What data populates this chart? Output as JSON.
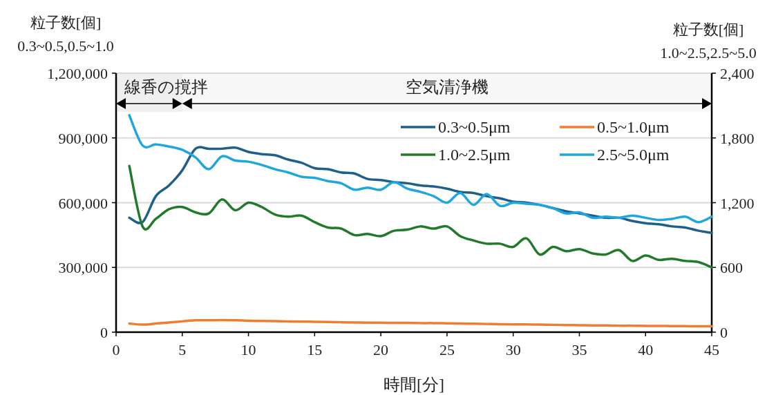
{
  "chart_data": {
    "type": "line",
    "xlabel": "時間[分]",
    "ylabel": "粒子数[個]\n0.3~0.5,0.5~1.0",
    "y2label": "粒子数[個]\n1.0~2.5,2.5~5.0",
    "x": [
      1,
      2,
      3,
      4,
      5,
      6,
      7,
      8,
      9,
      10,
      11,
      12,
      13,
      14,
      15,
      16,
      17,
      18,
      19,
      20,
      21,
      22,
      23,
      24,
      25,
      26,
      27,
      28,
      29,
      30,
      31,
      32,
      33,
      34,
      35,
      36,
      37,
      38,
      39,
      40,
      41,
      42,
      43,
      44,
      45
    ],
    "xlim": [
      0,
      45
    ],
    "xticks": [
      0,
      5,
      10,
      15,
      20,
      25,
      30,
      35,
      40,
      45
    ],
    "ylim": [
      0,
      1200000
    ],
    "yticks": [
      0,
      {
        "value": 300000,
        "label": "300,000"
      },
      {
        "value": 600000,
        "label": "600,000"
      },
      {
        "value": 900000,
        "label": "900,000"
      },
      {
        "value": 1200000,
        "label": "1,200,000"
      }
    ],
    "y2lim": [
      0,
      2400
    ],
    "y2ticks": [
      0,
      600,
      {
        "value": 1200,
        "label": "1,200"
      },
      {
        "value": 1800,
        "label": "1,800"
      },
      {
        "value": 2400,
        "label": "2,400"
      }
    ],
    "grid": "y",
    "legend": "top right",
    "marker": "none",
    "line_style": "solid",
    "bands": [
      {
        "axis": "x",
        "from": 0,
        "to": 5,
        "label": "線香の撹拌"
      },
      {
        "axis": "x",
        "from": 5,
        "to": 45,
        "label": "空気清浄機"
      }
    ],
    "series": [
      {
        "name": "0.3~0.5μm",
        "color": "#1f5f8b",
        "values": [
          530000,
          510000,
          630000,
          680000,
          750000,
          850000,
          850000,
          850000,
          855000,
          835000,
          825000,
          820000,
          800000,
          785000,
          760000,
          755000,
          740000,
          735000,
          710000,
          705000,
          695000,
          690000,
          680000,
          675000,
          665000,
          650000,
          645000,
          630000,
          620000,
          605000,
          600000,
          590000,
          575000,
          560000,
          550000,
          540000,
          530000,
          530000,
          515000,
          505000,
          500000,
          490000,
          485000,
          470000,
          460000
        ]
      },
      {
        "name": "0.5~1.0μm",
        "color": "#ed7d31",
        "values": [
          40000,
          35000,
          40000,
          45000,
          50000,
          55000,
          55000,
          56000,
          55000,
          53000,
          52000,
          51000,
          50000,
          49000,
          48000,
          47000,
          46000,
          45000,
          44000,
          44000,
          43000,
          43000,
          42000,
          42000,
          41000,
          40000,
          39000,
          38000,
          37000,
          36000,
          36000,
          35000,
          34000,
          33000,
          32000,
          31000,
          31000,
          30000,
          30000,
          29000,
          29000,
          28000,
          28000,
          27000,
          27000
        ]
      },
      {
        "name": "1.0~2.5μm",
        "color": "#217a2a",
        "axis": "y2",
        "values": [
          1540,
          980,
          1050,
          1140,
          1160,
          1110,
          1100,
          1230,
          1130,
          1200,
          1160,
          1090,
          1070,
          1080,
          1020,
          970,
          960,
          900,
          910,
          890,
          940,
          950,
          980,
          960,
          980,
          890,
          850,
          820,
          820,
          790,
          870,
          720,
          790,
          750,
          770,
          730,
          720,
          760,
          660,
          710,
          670,
          680,
          660,
          650,
          600
        ]
      },
      {
        "name": "2.5~5.0μm",
        "color": "#1ea7de",
        "axis": "y2",
        "values": [
          2010,
          1730,
          1740,
          1720,
          1690,
          1620,
          1510,
          1630,
          1590,
          1580,
          1550,
          1510,
          1480,
          1440,
          1430,
          1400,
          1380,
          1320,
          1340,
          1320,
          1390,
          1330,
          1300,
          1260,
          1200,
          1290,
          1180,
          1280,
          1170,
          1200,
          1190,
          1180,
          1150,
          1100,
          1110,
          1060,
          1070,
          1060,
          1080,
          1060,
          1040,
          1050,
          1070,
          1020,
          1070
        ]
      }
    ]
  }
}
